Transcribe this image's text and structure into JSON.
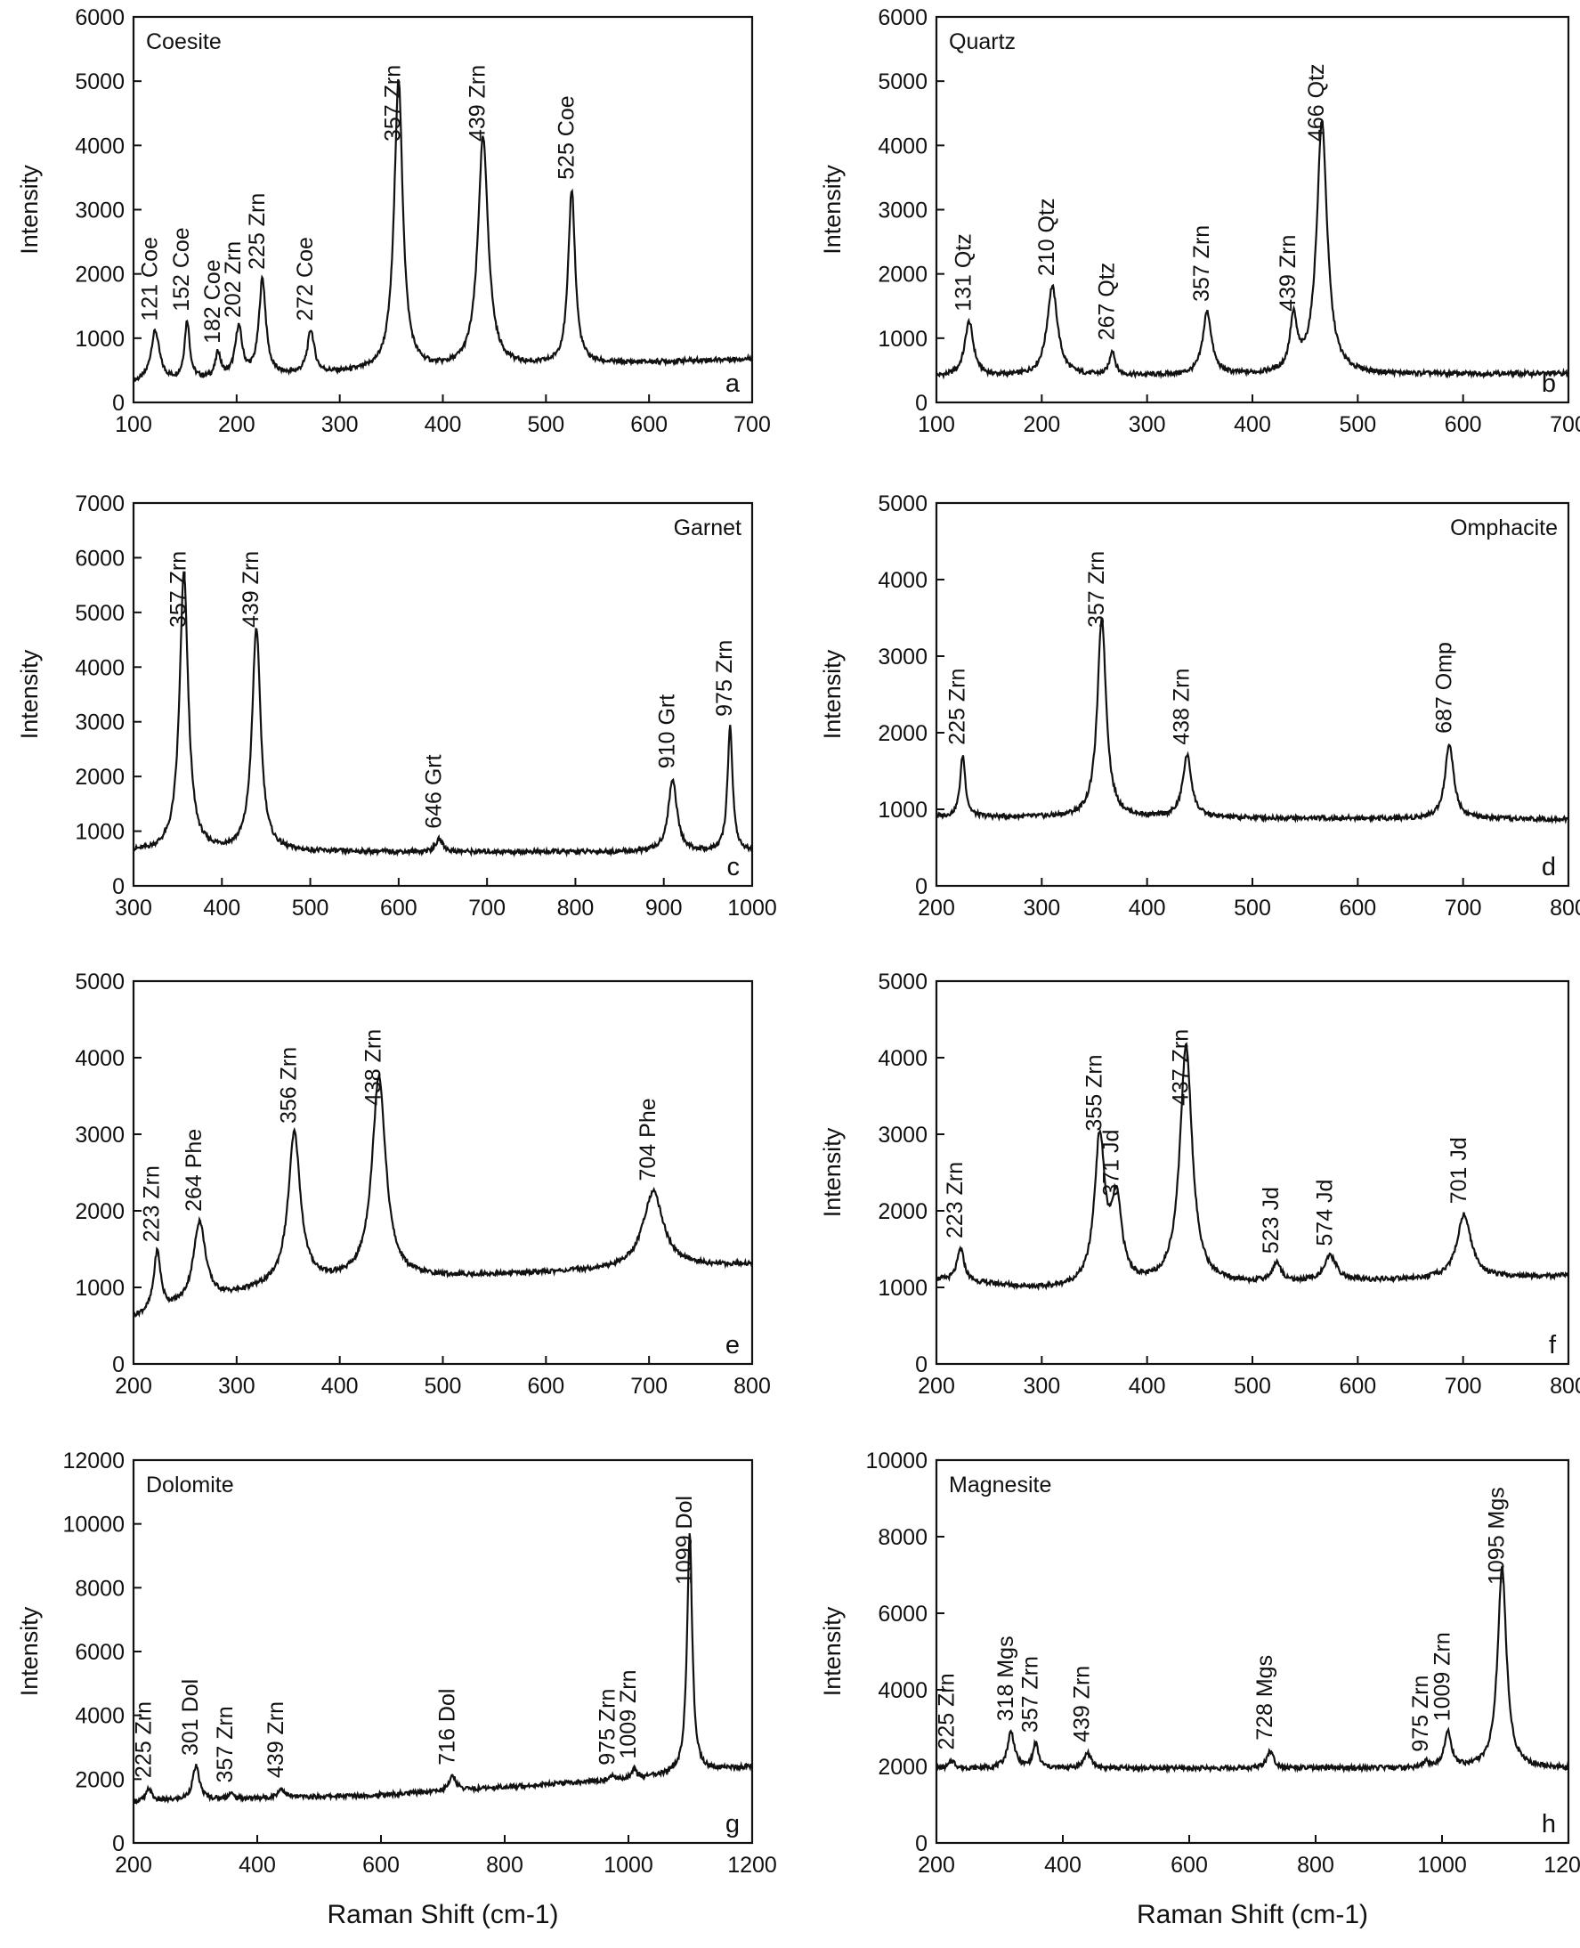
{
  "figure": {
    "xlabel": "Raman Shift (cm-1)",
    "ylabel": "Intensity"
  },
  "chart_data": [
    {
      "type": "line",
      "panel": "a",
      "mineral": "Coesite",
      "mineral_pos": "top-left",
      "xlim": [
        100,
        700
      ],
      "xticks": [
        100,
        200,
        300,
        400,
        500,
        600,
        700
      ],
      "ylim": [
        0,
        6000
      ],
      "yticks": [
        0,
        1000,
        2000,
        3000,
        4000,
        5000,
        6000
      ],
      "ylabel": "Intensity",
      "xlabel": "",
      "baseline": [
        [
          100,
          300
        ],
        [
          300,
          450
        ],
        [
          700,
          680
        ]
      ],
      "peaks": [
        {
          "x": 121,
          "y": 1100,
          "w": 5,
          "label": "121 Coe"
        },
        {
          "x": 152,
          "y": 1250,
          "w": 3,
          "label": "152 Coe"
        },
        {
          "x": 182,
          "y": 750,
          "w": 3,
          "label": "182 Coe"
        },
        {
          "x": 202,
          "y": 1150,
          "w": 4,
          "label": "202 Zrn"
        },
        {
          "x": 225,
          "y": 1900,
          "w": 4,
          "label": "225 Zrn"
        },
        {
          "x": 272,
          "y": 1100,
          "w": 4,
          "label": "272 Coe"
        },
        {
          "x": 357,
          "y": 5000,
          "w": 5,
          "label": "357 Zrn"
        },
        {
          "x": 439,
          "y": 4100,
          "w": 6,
          "label": "439 Zrn"
        },
        {
          "x": 525,
          "y": 3300,
          "w": 4,
          "label": "525 Coe"
        }
      ]
    },
    {
      "type": "line",
      "panel": "b",
      "mineral": "Quartz",
      "mineral_pos": "top-left",
      "xlim": [
        100,
        700
      ],
      "xticks": [
        100,
        200,
        300,
        400,
        500,
        600,
        700
      ],
      "ylim": [
        0,
        6000
      ],
      "yticks": [
        0,
        1000,
        2000,
        3000,
        4000,
        5000,
        6000
      ],
      "ylabel": "Intensity",
      "xlabel": "",
      "baseline": [
        [
          100,
          400
        ],
        [
          700,
          450
        ]
      ],
      "peaks": [
        {
          "x": 131,
          "y": 1250,
          "w": 5,
          "label": "131 Qtz"
        },
        {
          "x": 210,
          "y": 1800,
          "w": 6,
          "label": "210 Qtz"
        },
        {
          "x": 267,
          "y": 800,
          "w": 3,
          "label": "267 Qtz"
        },
        {
          "x": 357,
          "y": 1400,
          "w": 5,
          "label": "357 Zrn"
        },
        {
          "x": 439,
          "y": 1250,
          "w": 4,
          "label": "439 Zrn"
        },
        {
          "x": 466,
          "y": 4350,
          "w": 6,
          "label": "466 Qtz"
        }
      ]
    },
    {
      "type": "line",
      "panel": "c",
      "mineral": "Garnet",
      "mineral_pos": "top-right",
      "xlim": [
        300,
        1000
      ],
      "xticks": [
        300,
        400,
        500,
        600,
        700,
        800,
        900,
        1000
      ],
      "ylim": [
        0,
        7000
      ],
      "yticks": [
        0,
        1000,
        2000,
        3000,
        4000,
        5000,
        6000,
        7000
      ],
      "ylabel": "Intensity",
      "xlabel": "",
      "baseline": [
        [
          300,
          620
        ],
        [
          1000,
          620
        ]
      ],
      "peaks": [
        {
          "x": 357,
          "y": 5700,
          "w": 5,
          "label": "357 Zrn"
        },
        {
          "x": 439,
          "y": 4700,
          "w": 5,
          "label": "439 Zrn"
        },
        {
          "x": 646,
          "y": 850,
          "w": 4,
          "label": "646 Grt"
        },
        {
          "x": 910,
          "y": 1950,
          "w": 5,
          "label": "910 Grt"
        },
        {
          "x": 975,
          "y": 2900,
          "w": 3,
          "label": "975 Zrn"
        }
      ]
    },
    {
      "type": "line",
      "panel": "d",
      "mineral": "Omphacite",
      "mineral_pos": "top-right",
      "xlim": [
        200,
        800
      ],
      "xticks": [
        200,
        300,
        400,
        500,
        600,
        700,
        800
      ],
      "ylim": [
        0,
        5000
      ],
      "yticks": [
        0,
        1000,
        2000,
        3000,
        4000,
        5000
      ],
      "ylabel": "Intensity",
      "xlabel": "",
      "baseline": [
        [
          200,
          900
        ],
        [
          800,
          870
        ]
      ],
      "peaks": [
        {
          "x": 225,
          "y": 1700,
          "w": 3,
          "label": "225 Zrn"
        },
        {
          "x": 357,
          "y": 3500,
          "w": 5,
          "label": "357 Zrn"
        },
        {
          "x": 438,
          "y": 1700,
          "w": 5,
          "label": "438 Zrn"
        },
        {
          "x": 687,
          "y": 1850,
          "w": 5,
          "label": "687 Omp"
        }
      ]
    },
    {
      "type": "line",
      "panel": "e",
      "mineral": "",
      "mineral_pos": "top-left",
      "xlim": [
        200,
        800
      ],
      "xticks": [
        200,
        300,
        400,
        500,
        600,
        700,
        800
      ],
      "ylim": [
        0,
        5000
      ],
      "yticks": [
        0,
        1000,
        2000,
        3000,
        4000,
        5000
      ],
      "ylabel": "",
      "xlabel": "",
      "baseline": [
        [
          200,
          600
        ],
        [
          350,
          1050
        ],
        [
          800,
          1300
        ]
      ],
      "peaks": [
        {
          "x": 223,
          "y": 1450,
          "w": 4,
          "label": "223 Zrn"
        },
        {
          "x": 264,
          "y": 1850,
          "w": 7,
          "label": "264 Phe"
        },
        {
          "x": 356,
          "y": 3000,
          "w": 7,
          "label": "356 Zrn"
        },
        {
          "x": 438,
          "y": 3750,
          "w": 8,
          "label": "438 Zrn"
        },
        {
          "x": 704,
          "y": 2250,
          "w": 12,
          "label": "704 Phe"
        }
      ]
    },
    {
      "type": "line",
      "panel": "f",
      "mineral": "",
      "mineral_pos": "top-left",
      "xlim": [
        200,
        800
      ],
      "xticks": [
        200,
        300,
        400,
        500,
        600,
        700,
        800
      ],
      "ylim": [
        0,
        5000
      ],
      "yticks": [
        0,
        1000,
        2000,
        3000,
        4000,
        5000
      ],
      "ylabel": "Intensity",
      "xlabel": "",
      "baseline": [
        [
          200,
          1100
        ],
        [
          300,
          980
        ],
        [
          800,
          1150
        ]
      ],
      "peaks": [
        {
          "x": 223,
          "y": 1500,
          "w": 4,
          "label": "223 Zrn"
        },
        {
          "x": 355,
          "y": 2900,
          "w": 6,
          "label": "355 Zrn"
        },
        {
          "x": 371,
          "y": 2050,
          "w": 6,
          "label": "371 Jd"
        },
        {
          "x": 437,
          "y": 4150,
          "w": 7,
          "label": "437 Zrn"
        },
        {
          "x": 523,
          "y": 1300,
          "w": 5,
          "label": "523 Jd"
        },
        {
          "x": 574,
          "y": 1400,
          "w": 7,
          "label": "574 Jd"
        },
        {
          "x": 701,
          "y": 1950,
          "w": 8,
          "label": "701 Jd"
        }
      ]
    },
    {
      "type": "line",
      "panel": "g",
      "mineral": "Dolomite",
      "mineral_pos": "top-left",
      "xlim": [
        200,
        1200
      ],
      "xticks": [
        200,
        400,
        600,
        800,
        1000,
        1200
      ],
      "ylim": [
        0,
        12000
      ],
      "yticks": [
        0,
        2000,
        4000,
        6000,
        8000,
        10000,
        12000
      ],
      "ylabel": "Intensity",
      "xlabel": "Raman Shift (cm-1)",
      "baseline": [
        [
          200,
          1300
        ],
        [
          600,
          1500
        ],
        [
          1000,
          2000
        ],
        [
          1200,
          2400
        ]
      ],
      "peaks": [
        {
          "x": 225,
          "y": 1700,
          "w": 3,
          "label": "225 Zrn"
        },
        {
          "x": 301,
          "y": 2400,
          "w": 4,
          "label": "301 Dol"
        },
        {
          "x": 357,
          "y": 1550,
          "w": 3,
          "label": "357 Zrn"
        },
        {
          "x": 439,
          "y": 1700,
          "w": 4,
          "label": "439 Zrn"
        },
        {
          "x": 716,
          "y": 2100,
          "w": 4,
          "label": "716 Dol"
        },
        {
          "x": 975,
          "y": 2100,
          "w": 3,
          "label": "975 Zrn"
        },
        {
          "x": 1009,
          "y": 2300,
          "w": 3,
          "label": "1009 Zrn"
        },
        {
          "x": 1099,
          "y": 9700,
          "w": 3,
          "label": "1099 Dol"
        }
      ]
    },
    {
      "type": "line",
      "panel": "h",
      "mineral": "Magnesite",
      "mineral_pos": "top-left",
      "xlim": [
        200,
        1200
      ],
      "xticks": [
        200,
        400,
        600,
        800,
        1000,
        1200
      ],
      "ylim": [
        0,
        10000
      ],
      "yticks": [
        0,
        2000,
        4000,
        6000,
        8000,
        10000
      ],
      "ylabel": "Intensity",
      "xlabel": "Raman Shift (cm-1)",
      "baseline": [
        [
          200,
          1950
        ],
        [
          1200,
          1950
        ]
      ],
      "peaks": [
        {
          "x": 225,
          "y": 2150,
          "w": 3,
          "label": "225 Zrn"
        },
        {
          "x": 318,
          "y": 2900,
          "w": 4,
          "label": "318 Mgs"
        },
        {
          "x": 357,
          "y": 2600,
          "w": 3,
          "label": "357 Zrn"
        },
        {
          "x": 439,
          "y": 2350,
          "w": 4,
          "label": "439 Zrn"
        },
        {
          "x": 728,
          "y": 2400,
          "w": 4,
          "label": "728 Mgs"
        },
        {
          "x": 975,
          "y": 2100,
          "w": 3,
          "label": "975 Zrn"
        },
        {
          "x": 1009,
          "y": 2900,
          "w": 4,
          "label": "1009 Zrn"
        },
        {
          "x": 1095,
          "y": 7200,
          "w": 5,
          "label": "1095 Mgs"
        }
      ]
    }
  ]
}
